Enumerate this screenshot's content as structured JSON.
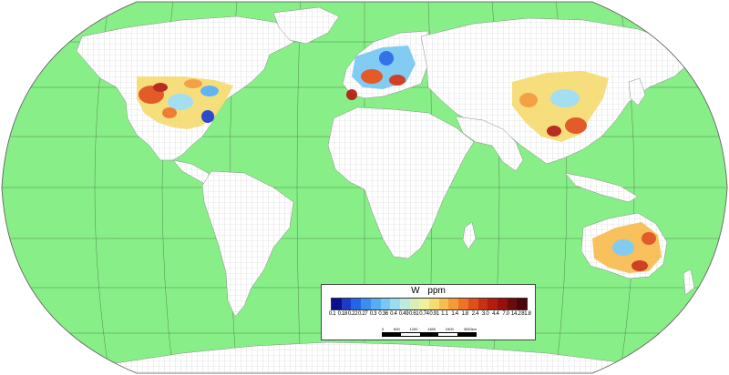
{
  "map": {
    "ocean_color": "#88ef88",
    "land_color": "#ffffff",
    "grid_color": "#cfcfcf",
    "graticule_color": "#3c5a3c",
    "projection": "Robinson"
  },
  "legend": {
    "element": "W",
    "unit": "ppm",
    "classes": [
      {
        "label": "0.1",
        "color": "#08108c"
      },
      {
        "label": "0.18",
        "color": "#1c3cc8"
      },
      {
        "label": "0.22",
        "color": "#2266e6"
      },
      {
        "label": "0.27",
        "color": "#3b8ef0"
      },
      {
        "label": "0.3",
        "color": "#55aef2"
      },
      {
        "label": "0.36",
        "color": "#78c8f4"
      },
      {
        "label": "0.4",
        "color": "#9cdcf0"
      },
      {
        "label": "0.49",
        "color": "#bfeae0"
      },
      {
        "label": "0.61",
        "color": "#d8f0b8"
      },
      {
        "label": "0.74",
        "color": "#eef09a"
      },
      {
        "label": "0.91",
        "color": "#f6dc72"
      },
      {
        "label": "1.1",
        "color": "#f8bc50"
      },
      {
        "label": "1.4",
        "color": "#f49a36"
      },
      {
        "label": "1.8",
        "color": "#ee7424"
      },
      {
        "label": "2.4",
        "color": "#e24e18"
      },
      {
        "label": "3.0",
        "color": "#cc3012"
      },
      {
        "label": "4.4",
        "color": "#b41c10"
      },
      {
        "label": "7.0",
        "color": "#96100e"
      },
      {
        "label": "14.2",
        "color": "#6c0a0c"
      },
      {
        "label": "81.8",
        "color": "#4a060a"
      }
    ]
  },
  "scalebar": {
    "labels": [
      "0",
      "600",
      "1200",
      "1800",
      "2400",
      "3000km"
    ]
  }
}
